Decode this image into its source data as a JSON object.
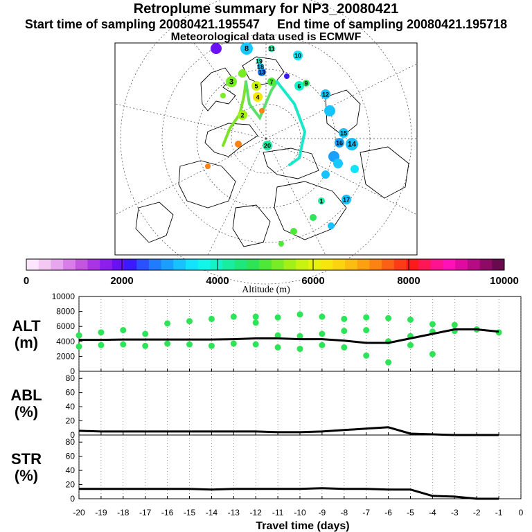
{
  "header": {
    "title": "Retroplume summary for NP3_20080421",
    "start_label": "Start time of sampling 20080421.195547",
    "end_label": "End time of sampling 20080421.195718",
    "met_label": "Meteorological data used is ECMWF"
  },
  "colorbar": {
    "label": "Altitude (m)",
    "tick_labels": [
      "0",
      "2000",
      "4000",
      "6000",
      "8000",
      "10000"
    ],
    "range": [
      0,
      10000
    ],
    "colors": [
      "#fbe6fb",
      "#f3c8f3",
      "#e8a6ee",
      "#d97ee8",
      "#c455e0",
      "#aa33e6",
      "#8c1fee",
      "#6a10f5",
      "#3a1aff",
      "#2a50ff",
      "#1f7cff",
      "#19a0ff",
      "#16c2ff",
      "#12e4ff",
      "#10f6ea",
      "#14f2c8",
      "#18eea0",
      "#1ee87a",
      "#2ee456",
      "#4ee838",
      "#78ec24",
      "#a2f016",
      "#c8f210",
      "#e6f20c",
      "#f6e60c",
      "#fcd40e",
      "#fcbc10",
      "#fca010",
      "#fc8212",
      "#fc6014",
      "#fc3c16",
      "#fc1a1a",
      "#ff1656",
      "#ff1290",
      "#ff10b8",
      "#e00aa0",
      "#b80a84",
      "#8e0a66",
      "#6a0a4e"
    ]
  },
  "map": {
    "numbered_points": [
      "8",
      "10",
      "11",
      "13",
      "18",
      "19",
      "6",
      "3",
      "2",
      "4",
      "5",
      "7",
      "12",
      "20",
      "14",
      "9",
      "17",
      "15",
      "16",
      "1"
    ]
  },
  "chart_data": [
    {
      "type": "line",
      "title": "ALT",
      "ylabel_lines": [
        "ALT",
        "(m)"
      ],
      "ylim": [
        0,
        10000
      ],
      "y_ticks": [
        "0",
        "2000",
        "4000",
        "6000",
        "8000",
        "10000"
      ],
      "xlim": [
        -20,
        0
      ],
      "x": [
        -20,
        -19,
        -18,
        -17,
        -16,
        -15,
        -14,
        -13,
        -12,
        -11,
        -10,
        -9,
        -8,
        -7,
        -6,
        -5,
        -4,
        -3,
        -2,
        -1
      ],
      "series": [
        {
          "name": "mean altitude",
          "values": [
            4200,
            4200,
            4250,
            4250,
            4250,
            4250,
            4250,
            4300,
            4400,
            4400,
            4300,
            4300,
            4100,
            3800,
            3800,
            4400,
            5000,
            5600,
            5600,
            5300
          ]
        }
      ],
      "scatter": [
        {
          "x": -20,
          "y": 3300
        },
        {
          "x": -20,
          "y": 4800
        },
        {
          "x": -19,
          "y": 3500
        },
        {
          "x": -19,
          "y": 5200
        },
        {
          "x": -18,
          "y": 3600
        },
        {
          "x": -18,
          "y": 5500
        },
        {
          "x": -17,
          "y": 3400
        },
        {
          "x": -17,
          "y": 5000
        },
        {
          "x": -16,
          "y": 3700
        },
        {
          "x": -16,
          "y": 6400
        },
        {
          "x": -15,
          "y": 3600
        },
        {
          "x": -15,
          "y": 6700
        },
        {
          "x": -14,
          "y": 3400
        },
        {
          "x": -14,
          "y": 7000
        },
        {
          "x": -13,
          "y": 3700
        },
        {
          "x": -13,
          "y": 7300
        },
        {
          "x": -12,
          "y": 3600
        },
        {
          "x": -12,
          "y": 6500
        },
        {
          "x": -12,
          "y": 7300
        },
        {
          "x": -11,
          "y": 3200
        },
        {
          "x": -11,
          "y": 4800
        },
        {
          "x": -11,
          "y": 7200
        },
        {
          "x": -10,
          "y": 3000
        },
        {
          "x": -10,
          "y": 4700
        },
        {
          "x": -10,
          "y": 7600
        },
        {
          "x": -9,
          "y": 3500
        },
        {
          "x": -9,
          "y": 5000
        },
        {
          "x": -9,
          "y": 7300
        },
        {
          "x": -8,
          "y": 3200
        },
        {
          "x": -8,
          "y": 5400
        },
        {
          "x": -8,
          "y": 7000
        },
        {
          "x": -7,
          "y": 2100
        },
        {
          "x": -7,
          "y": 5500
        },
        {
          "x": -7,
          "y": 7200
        },
        {
          "x": -6,
          "y": 1200
        },
        {
          "x": -6,
          "y": 4000
        },
        {
          "x": -6,
          "y": 7100
        },
        {
          "x": -5,
          "y": 3500
        },
        {
          "x": -5,
          "y": 4700
        },
        {
          "x": -5,
          "y": 6900
        },
        {
          "x": -4,
          "y": 2300
        },
        {
          "x": -4,
          "y": 5300
        },
        {
          "x": -4,
          "y": 6300
        },
        {
          "x": -3,
          "y": 5400
        },
        {
          "x": -3,
          "y": 6200
        },
        {
          "x": -2,
          "y": 5600
        },
        {
          "x": -1,
          "y": 5200
        }
      ]
    },
    {
      "type": "line",
      "title": "ABL",
      "ylabel_lines": [
        "ABL",
        "(%)"
      ],
      "ylim": [
        0,
        90
      ],
      "y_ticks": [
        "0",
        "20",
        "40",
        "60",
        "80"
      ],
      "xlim": [
        -20,
        0
      ],
      "x": [
        -20,
        -19,
        -18,
        -17,
        -16,
        -15,
        -14,
        -13,
        -12,
        -11,
        -10,
        -9,
        -8,
        -7,
        -6,
        -5,
        -4,
        -3,
        -2,
        -1
      ],
      "series": [
        {
          "name": "ABL",
          "values": [
            6,
            5,
            5,
            5,
            5,
            5,
            5,
            5,
            5,
            4,
            4,
            5,
            7,
            9,
            11,
            2,
            1,
            0,
            0,
            0
          ]
        }
      ]
    },
    {
      "type": "line",
      "title": "STR",
      "ylabel_lines": [
        "STR",
        "(%)"
      ],
      "ylim": [
        0,
        90
      ],
      "y_ticks": [
        "0",
        "20",
        "40",
        "60",
        "80"
      ],
      "xlim": [
        -20,
        0
      ],
      "x_ticks": [
        "-20",
        "-19",
        "-18",
        "-17",
        "-16",
        "-15",
        "-14",
        "-13",
        "-12",
        "-11",
        "-10",
        "-9",
        "-8",
        "-7",
        "-6",
        "-5",
        "-4",
        "-3",
        "-2",
        "-1",
        "0"
      ],
      "xlabel": "Travel time (days)",
      "x": [
        -20,
        -19,
        -18,
        -17,
        -16,
        -15,
        -14,
        -13,
        -12,
        -11,
        -10,
        -9,
        -8,
        -7,
        -6,
        -5,
        -4,
        -3,
        -2,
        -1
      ],
      "series": [
        {
          "name": "STR",
          "values": [
            14,
            14,
            14,
            14,
            14,
            14,
            13,
            14,
            14,
            14,
            14,
            15,
            14,
            14,
            13,
            13,
            4,
            3,
            0,
            0
          ]
        }
      ]
    }
  ]
}
